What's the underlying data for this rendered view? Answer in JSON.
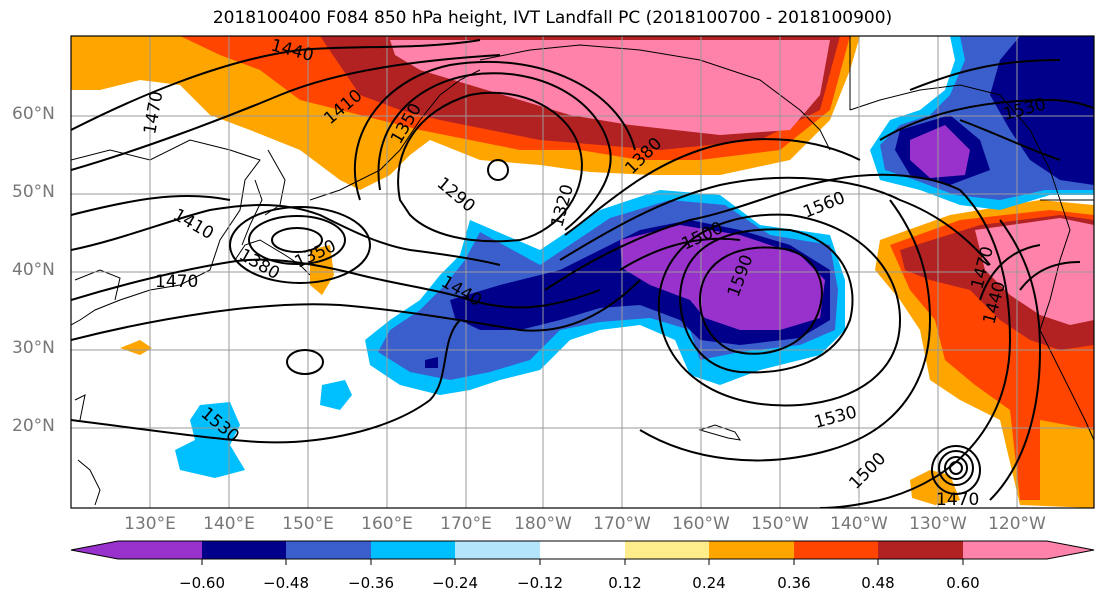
{
  "title": "2018100400 F084 850 hPa height, IVT Landfall PC (2018100700 - 2018100900)",
  "lat_labels": [
    "60°N",
    "50°N",
    "40°N",
    "30°N",
    "20°N"
  ],
  "lon_labels": [
    "130°E",
    "140°E",
    "150°E",
    "160°E",
    "170°E",
    "180°W",
    "170°W",
    "160°W",
    "150°W",
    "140°W",
    "130°W",
    "120°W"
  ],
  "contour_labels": [
    "1440",
    "1410",
    "1470",
    "1350",
    "1290",
    "1320",
    "1380",
    "1530",
    "1560",
    "1500",
    "1590",
    "1410",
    "1380",
    "1350",
    "1470",
    "1440",
    "1530",
    "1500",
    "1470",
    "1440",
    "1470"
  ],
  "colorbar": {
    "ticks": [
      "−0.60",
      "−0.48",
      "−0.36",
      "−0.24",
      "−0.12",
      "0.12",
      "0.24",
      "0.36",
      "0.48",
      "0.60"
    ],
    "colors": [
      "#9932cc",
      "#00008b",
      "#3a5fcd",
      "#00bfff",
      "#b3e5fc",
      "#ffffff",
      "#ffec8b",
      "#ffa500",
      "#ff4500",
      "#b22222",
      "#ff82ab"
    ]
  }
}
